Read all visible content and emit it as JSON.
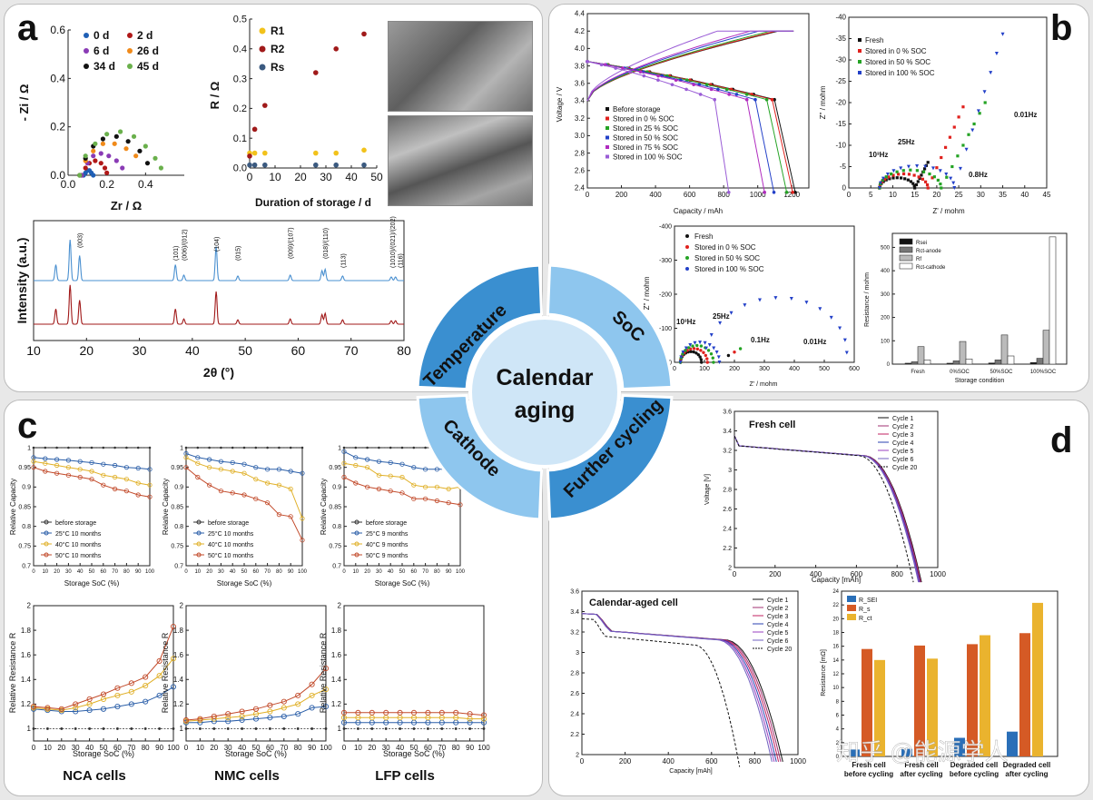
{
  "letters": {
    "a": "a",
    "b": "b",
    "c": "c",
    "d": "d"
  },
  "center": {
    "line1": "Calendar",
    "line2": "aging"
  },
  "quadrants": {
    "tl": "Temperature",
    "tr": "SoC",
    "bl": "Cathode",
    "br": "Further cycling"
  },
  "colors": {
    "q_tl": "#3a8fd0",
    "q_tr": "#8ec6ee",
    "q_bl": "#8ec6ee",
    "q_br": "#3a8fd0",
    "center": "#cfe6f7"
  },
  "a": {
    "eis": {
      "ylabel": "- Zi / Ω",
      "xlabel": "Zr / Ω",
      "xticks": [
        "0.0",
        "0.2",
        "0.4"
      ],
      "yticks": [
        "0.0",
        "0.2",
        "0.4",
        "0.6"
      ],
      "legend": [
        "0 d",
        "2 d",
        "6 d",
        "26 d",
        "34 d",
        "45 d"
      ],
      "legend_colors": [
        "#1f5fb5",
        "#b01818",
        "#8a3bb5",
        "#f08a1a",
        "#111111",
        "#6ab04c"
      ]
    },
    "res": {
      "ylabel": "R / Ω",
      "xlabel": "Duration of storage / d",
      "xticks": [
        "0",
        "10",
        "20",
        "30",
        "40",
        "50"
      ],
      "yticks": [
        "0.0",
        "0.1",
        "0.2",
        "0.3",
        "0.4",
        "0.5"
      ],
      "legend": [
        "R1",
        "R2",
        "Rs"
      ],
      "legend_colors": [
        "#f2c21b",
        "#a01a1a",
        "#3b5a80"
      ]
    },
    "xrd": {
      "ylabel": "Intensity (a.u.)",
      "xlabel": "2θ (°)",
      "xticks": [
        "10",
        "20",
        "30",
        "40",
        "50",
        "60",
        "70",
        "80"
      ],
      "peaks": [
        "(003)",
        "(101)",
        "(006)/(012)",
        "(104)",
        "(015)",
        "(009)",
        "(107)",
        "(018)",
        "(110)",
        "(113)",
        "(1010)",
        "(021)",
        "(202)",
        "(116)"
      ]
    }
  },
  "b": {
    "volt": {
      "ylabel": "Voltage / V",
      "xlabel": "Capacity / mAh",
      "xticks": [
        "0",
        "200",
        "400",
        "600",
        "800",
        "1000",
        "1200"
      ],
      "yticks": [
        "2.4",
        "2.6",
        "2.8",
        "3.0",
        "3.2",
        "3.4",
        "3.6",
        "3.8",
        "4.0",
        "4.2",
        "4.4"
      ],
      "legend": [
        "Before storage",
        "Stored in 0 % SOC",
        "Stored in 25 % SOC",
        "Stored in 50 % SOC",
        "Stored in 75 % SOC",
        "Stored in 100 % SOC"
      ]
    },
    "nyq1": {
      "ylabel": "Z'' / mohm",
      "xlabel": "Z' / mohm",
      "xticks": [
        "0",
        "5",
        "10",
        "15",
        "20",
        "25",
        "30",
        "35",
        "40",
        "45"
      ],
      "yticks": [
        "0",
        "-5",
        "-10",
        "-15",
        "-20",
        "-25",
        "-30",
        "-35",
        "-40"
      ],
      "legend": [
        "Fresh",
        "Stored in 0 % SOC",
        "Stored in 50 % SOC",
        "Stored in 100 % SOC"
      ],
      "ann": [
        "10³Hz",
        "25Hz",
        "0.01Hz",
        "0.8Hz"
      ]
    },
    "nyq2": {
      "ylabel": "Z'' / mohm",
      "xlabel": "Z' / mohm",
      "xticks": [
        "0",
        "100",
        "200",
        "300",
        "400",
        "500",
        "600"
      ],
      "yticks": [
        "0",
        "-100",
        "-200",
        "-300",
        "-400"
      ],
      "legend": [
        "Fresh",
        "Stored in 0 % SOC",
        "Stored in 50 % SOC",
        "Stored in 100 % SOC"
      ],
      "ann": [
        "10³Hz",
        "25Hz",
        "0.1Hz",
        "0.01Hz"
      ]
    },
    "bar": {
      "ylabel": "Resistance / mohm",
      "xlabel": "Storage condition",
      "categories": [
        "Fresh",
        "0%SOC",
        "50%SOC",
        "100%SOC"
      ],
      "yticks": [
        "0",
        "100",
        "200",
        "300",
        "400",
        "500"
      ],
      "legend": [
        "Rsei",
        "Rct-anode",
        "Rf",
        "Rct-cathode"
      ]
    }
  },
  "c": {
    "cap_ylabel": "Relative Capacity",
    "res_ylabel": "Relative Resistance R",
    "xlabel": "Storage SoC (%)",
    "xticks": [
      "0",
      "10",
      "20",
      "30",
      "40",
      "50",
      "60",
      "70",
      "80",
      "90",
      "100"
    ],
    "cap_yticks": [
      "0.7",
      "0.75",
      "0.8",
      "0.85",
      "0.9",
      "0.95",
      "1"
    ],
    "res_yticks": [
      "1",
      "1.2",
      "1.4",
      "1.6",
      "1.8",
      "2"
    ],
    "cells": [
      "NCA cells",
      "NMC cells",
      "LFP cells"
    ],
    "legend1": [
      "before storage",
      "25°C 10 months",
      "40°C 10 months",
      "50°C 10 months"
    ],
    "legend3": [
      "before storage",
      "25°C 9 months",
      "40°C 9 months",
      "50°C 9 months"
    ]
  },
  "d": {
    "fresh": {
      "title": "Fresh cell",
      "ylabel": "Voltage [V]",
      "xlabel": "Capacity [mAh]",
      "xticks": [
        "0",
        "200",
        "400",
        "600",
        "800",
        "1000"
      ],
      "yticks": [
        "2",
        "2.2",
        "2.4",
        "2.6",
        "2.8",
        "3",
        "3.2",
        "3.4",
        "3.6"
      ],
      "legend": [
        "Cycle 1",
        "Cycle 2",
        "Cycle 3",
        "Cycle 4",
        "Cycle 5",
        "Cycle 6",
        "Cycle 20"
      ]
    },
    "aged": {
      "title": "Calendar-aged cell",
      "xlabel": "Capacity [mAh]",
      "xticks": [
        "0",
        "200",
        "400",
        "600",
        "800",
        "1000"
      ],
      "yticks": [
        "2",
        "2.2",
        "2.4",
        "2.6",
        "2.8",
        "3",
        "3.2",
        "3.4",
        "3.6"
      ],
      "legend": [
        "Cycle 1",
        "Cycle 2",
        "Cycle 3",
        "Cycle 4",
        "Cycle 5",
        "Cycle 6",
        "Cycle 20"
      ]
    },
    "bar": {
      "ylabel": "Resistance [mΩ]",
      "yticks": [
        "0",
        "2",
        "4",
        "6",
        "8",
        "10",
        "12",
        "14",
        "16",
        "18",
        "20",
        "22",
        "24"
      ],
      "legend": [
        "R_SEI",
        "R_s",
        "R_ct"
      ],
      "categories": [
        "Fresh cell before cycling",
        "Fresh cell after cycling",
        "Degraded cell before cycling",
        "Degraded cell after cycling"
      ]
    },
    "watermark": "知乎 @能源学人"
  },
  "chart_data": [
    {
      "type": "scatter",
      "title": "",
      "xlabel": "Zr / Ω",
      "ylabel": "- Zi / Ω",
      "xlim": [
        0,
        0.6
      ],
      "ylim": [
        0,
        0.6
      ],
      "series": [
        {
          "name": "0 d",
          "points": [
            [
              0.08,
              0
            ],
            [
              0.09,
              0.01
            ],
            [
              0.1,
              0.02
            ],
            [
              0.11,
              0.02
            ],
            [
              0.12,
              0.01
            ],
            [
              0.13,
              0
            ]
          ]
        },
        {
          "name": "2 d",
          "points": [
            [
              0.07,
              0
            ],
            [
              0.09,
              0.03
            ],
            [
              0.11,
              0.05
            ],
            [
              0.14,
              0.06
            ],
            [
              0.17,
              0.05
            ],
            [
              0.19,
              0.03
            ],
            [
              0.2,
              0.01
            ]
          ]
        },
        {
          "name": "6 d",
          "points": [
            [
              0.07,
              0
            ],
            [
              0.1,
              0.05
            ],
            [
              0.13,
              0.08
            ],
            [
              0.17,
              0.09
            ],
            [
              0.21,
              0.08
            ],
            [
              0.25,
              0.06
            ],
            [
              0.28,
              0.03
            ]
          ]
        },
        {
          "name": "26 d",
          "points": [
            [
              0.06,
              0
            ],
            [
              0.09,
              0.06
            ],
            [
              0.13,
              0.1
            ],
            [
              0.18,
              0.13
            ],
            [
              0.24,
              0.13
            ],
            [
              0.3,
              0.11
            ],
            [
              0.35,
              0.08
            ]
          ]
        },
        {
          "name": "34 d",
          "points": [
            [
              0.06,
              0
            ],
            [
              0.09,
              0.07
            ],
            [
              0.13,
              0.12
            ],
            [
              0.18,
              0.15
            ],
            [
              0.25,
              0.16
            ],
            [
              0.31,
              0.14
            ],
            [
              0.37,
              0.1
            ],
            [
              0.41,
              0.05
            ]
          ]
        },
        {
          "name": "45 d",
          "points": [
            [
              0.06,
              0
            ],
            [
              0.09,
              0.08
            ],
            [
              0.14,
              0.13
            ],
            [
              0.2,
              0.17
            ],
            [
              0.27,
              0.18
            ],
            [
              0.34,
              0.16
            ],
            [
              0.4,
              0.12
            ],
            [
              0.45,
              0.07
            ],
            [
              0.48,
              0.03
            ]
          ]
        }
      ]
    },
    {
      "type": "scatter",
      "title": "",
      "xlabel": "Duration of storage / d",
      "ylabel": "R / Ω",
      "xlim": [
        0,
        50
      ],
      "ylim": [
        0,
        0.5
      ],
      "series": [
        {
          "name": "R1",
          "points": [
            [
              0,
              0.05
            ],
            [
              2,
              0.05
            ],
            [
              6,
              0.05
            ],
            [
              26,
              0.05
            ],
            [
              34,
              0.05
            ],
            [
              45,
              0.06
            ]
          ]
        },
        {
          "name": "R2",
          "points": [
            [
              0,
              0.04
            ],
            [
              2,
              0.13
            ],
            [
              6,
              0.21
            ],
            [
              26,
              0.32
            ],
            [
              34,
              0.4
            ],
            [
              45,
              0.45
            ]
          ]
        },
        {
          "name": "Rs",
          "points": [
            [
              0,
              0.01
            ],
            [
              2,
              0.01
            ],
            [
              6,
              0.01
            ],
            [
              26,
              0.01
            ],
            [
              34,
              0.01
            ],
            [
              45,
              0.01
            ]
          ]
        }
      ]
    },
    {
      "type": "bar",
      "title": "",
      "xlabel": "Storage condition",
      "ylabel": "Resistance / mohm",
      "categories": [
        "Fresh",
        "0%SOC",
        "50%SOC",
        "100%SOC"
      ],
      "ylim": [
        0,
        560
      ],
      "series": [
        {
          "name": "Rsei",
          "values": [
            4,
            4,
            5,
            7
          ]
        },
        {
          "name": "Rct-anode",
          "values": [
            10,
            14,
            18,
            25
          ]
        },
        {
          "name": "Rf",
          "values": [
            75,
            97,
            125,
            145
          ]
        },
        {
          "name": "Rct-cathode",
          "values": [
            18,
            22,
            35,
            545
          ]
        }
      ]
    },
    {
      "type": "bar",
      "title": "",
      "xlabel": "",
      "ylabel": "Resistance [mΩ]",
      "categories": [
        "Fresh cell before cycling",
        "Fresh cell after cycling",
        "Degraded cell before cycling",
        "Degraded cell after cycling"
      ],
      "ylim": [
        0,
        24
      ],
      "series": [
        {
          "name": "R_SEI",
          "values": [
            1.0,
            1.1,
            2.7,
            3.6
          ]
        },
        {
          "name": "R_s",
          "values": [
            15.6,
            16.1,
            16.3,
            17.9
          ]
        },
        {
          "name": "R_ct",
          "values": [
            14.0,
            14.2,
            17.6,
            22.3
          ]
        }
      ]
    }
  ]
}
